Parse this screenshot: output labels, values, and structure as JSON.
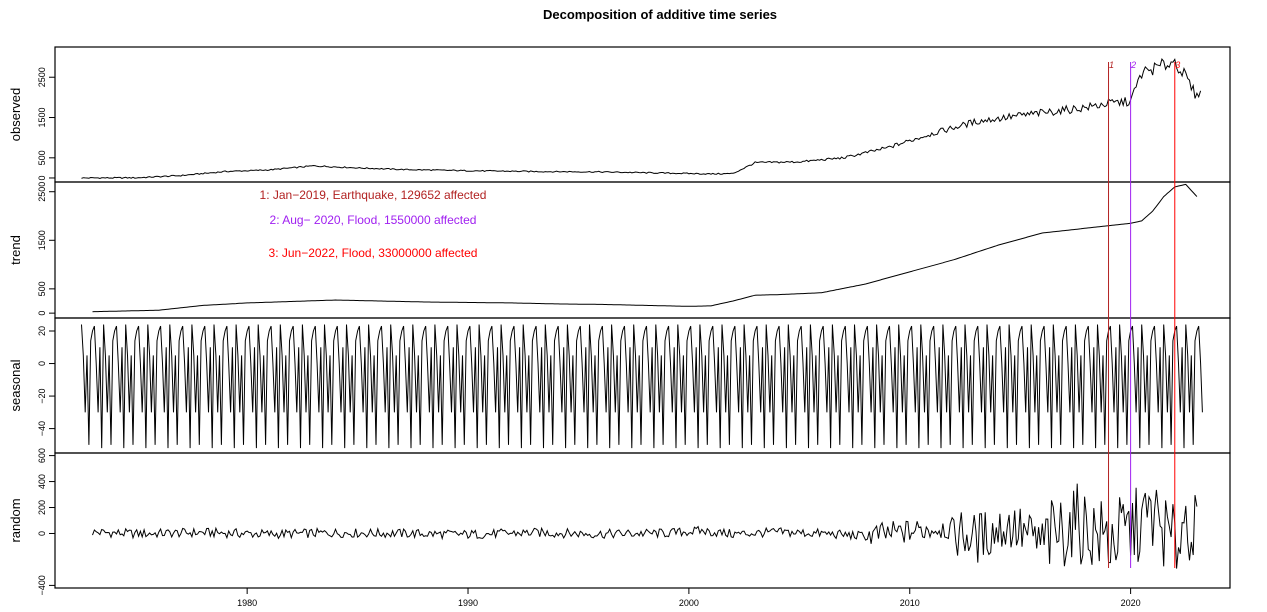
{
  "chart_data": {
    "type": "line",
    "title": "Decomposition of additive time series",
    "x_tick_labels": [
      "1980",
      "1990",
      "2000",
      "2010",
      "2020"
    ],
    "x_ticks": [
      1980,
      1990,
      2000,
      2010,
      2020
    ],
    "xlim": [
      1971.3,
      2024.5
    ],
    "grid": false,
    "panels": [
      {
        "name": "observed",
        "ylabel": "observed",
        "ylim": [
          -100,
          3250
        ],
        "yticks": [
          0,
          500,
          1500,
          2500
        ],
        "y_tick_labels": [
          "0",
          "500",
          "1500",
          "2500"
        ],
        "x": [
          1972.5,
          1975,
          1977,
          1979,
          1981,
          1983,
          1985,
          1987,
          1990,
          1993,
          1996,
          1999,
          2001,
          2002,
          2003,
          2005,
          2007,
          2009,
          2011,
          2013,
          2015,
          2016.5,
          2018,
          2019,
          2020,
          2020.5,
          2021,
          2021.5,
          2022,
          2022.5,
          2023,
          2023.2
        ],
        "values": [
          0,
          5,
          60,
          160,
          200,
          300,
          250,
          210,
          180,
          160,
          150,
          120,
          100,
          110,
          380,
          400,
          500,
          750,
          1100,
          1400,
          1550,
          1650,
          1750,
          1850,
          1900,
          2600,
          2700,
          2800,
          2900,
          2500,
          2000,
          2300
        ]
      },
      {
        "name": "trend",
        "ylabel": "trend",
        "ylim": [
          -100,
          2700
        ],
        "yticks": [
          0,
          500,
          1500,
          2500
        ],
        "y_tick_labels": [
          "0",
          "500",
          "1500",
          "2500"
        ],
        "x": [
          1973,
          1976,
          1978,
          1980,
          1982,
          1984,
          1986,
          1988,
          1990,
          1992,
          1994,
          1996,
          1998,
          2000,
          2001,
          2002,
          2003,
          2004,
          2006,
          2008,
          2010,
          2012,
          2014,
          2016,
          2018,
          2019,
          2020,
          2020.5,
          2021,
          2021.5,
          2022,
          2022.5,
          2023
        ],
        "values": [
          30,
          60,
          160,
          210,
          240,
          270,
          250,
          230,
          220,
          210,
          190,
          180,
          160,
          140,
          150,
          250,
          370,
          380,
          420,
          600,
          850,
          1100,
          1400,
          1650,
          1750,
          1800,
          1850,
          1900,
          2100,
          2400,
          2600,
          2650,
          2400
        ]
      },
      {
        "name": "seasonal",
        "ylabel": "seasonal",
        "ylim": [
          -55,
          28
        ],
        "yticks": [
          -40,
          -20,
          0,
          20
        ],
        "y_tick_labels": [
          "−40",
          "−20",
          "0",
          "20"
        ],
        "period": 1,
        "start": 1972.5,
        "end": 2023.3,
        "monthly_pattern": [
          24,
          5,
          -30,
          5,
          -50,
          14,
          20,
          23,
          0,
          -30,
          10,
          -52
        ]
      },
      {
        "name": "random",
        "ylabel": "random",
        "ylim": [
          -420,
          620
        ],
        "yticks": [
          -400,
          0,
          200,
          400,
          600
        ],
        "y_tick_labels": [
          "−400",
          "0",
          "200",
          "400",
          "600"
        ],
        "x": [
          1973,
          1975,
          1978,
          1981,
          1984,
          1987,
          1990,
          1993,
          1996,
          1999,
          2000.5,
          2002,
          2004,
          2006,
          2008,
          2010,
          2011.5,
          2013,
          2014.5,
          2016,
          2017.5,
          2019,
          2020,
          2021,
          2022,
          2022.5,
          2023
        ],
        "values": [
          40,
          -10,
          30,
          -20,
          20,
          0,
          -30,
          25,
          -15,
          10,
          80,
          -20,
          40,
          0,
          -80,
          60,
          200,
          -150,
          250,
          -300,
          350,
          -200,
          100,
          560,
          -380,
          560,
          -100
        ]
      }
    ],
    "events": [
      {
        "label": "1",
        "x": 2019.0,
        "color": "#b22222"
      },
      {
        "label": "2",
        "x": 2020.0,
        "color": "#a020f0"
      },
      {
        "label": "3",
        "x": 2022.0,
        "color": "#ff0000"
      }
    ],
    "annotations": [
      {
        "text": "1: Jan−2019, Earthquake,  129652 affected",
        "color": "#b22222"
      },
      {
        "text": "2:  Aug− 2020, Flood, 1550000 affected",
        "color": "#a020f0"
      },
      {
        "text": "3: Jun−2022, Flood, 33000000 affected",
        "color": "#ff0000"
      }
    ]
  }
}
